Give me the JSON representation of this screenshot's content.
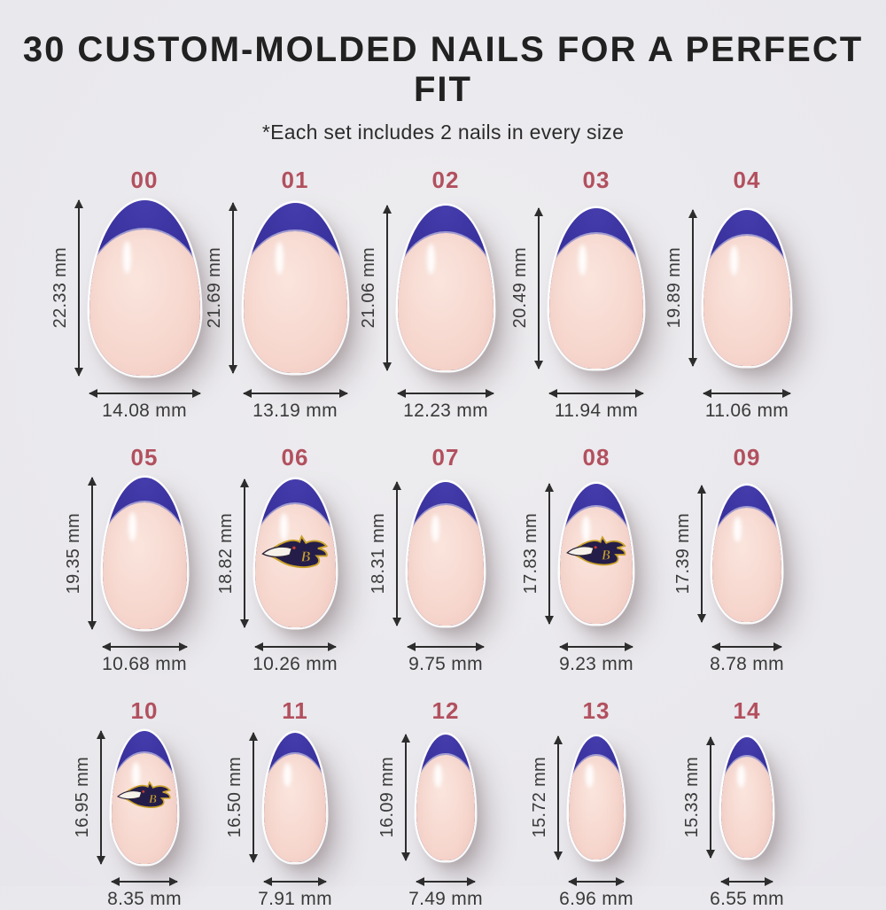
{
  "header": {
    "title": "30 CUSTOM-MOLDED NAILS FOR A PERFECT FIT",
    "subtitle": "*Each set includes 2 nails in every size"
  },
  "design": {
    "accent_label_color": "#b2505e",
    "tip_color": "#342c96",
    "base_color": "#f4d3ca",
    "background_color": "#e8e7ec",
    "decal_icon": "ravens-bird-logo"
  },
  "unit": "mm",
  "nails": [
    {
      "id": "00",
      "height_label": "22.33 mm",
      "width_label": "14.08 mm",
      "height_mm": 22.33,
      "width_mm": 14.08,
      "logo": false
    },
    {
      "id": "01",
      "height_label": "21.69 mm",
      "width_label": "13.19 mm",
      "height_mm": 21.69,
      "width_mm": 13.19,
      "logo": false
    },
    {
      "id": "02",
      "height_label": "21.06 mm",
      "width_label": "12.23 mm",
      "height_mm": 21.06,
      "width_mm": 12.23,
      "logo": false
    },
    {
      "id": "03",
      "height_label": "20.49 mm",
      "width_label": "11.94 mm",
      "height_mm": 20.49,
      "width_mm": 11.94,
      "logo": false
    },
    {
      "id": "04",
      "height_label": "19.89 mm",
      "width_label": "11.06 mm",
      "height_mm": 19.89,
      "width_mm": 11.06,
      "logo": false
    },
    {
      "id": "05",
      "height_label": "19.35 mm",
      "width_label": "10.68 mm",
      "height_mm": 19.35,
      "width_mm": 10.68,
      "logo": false
    },
    {
      "id": "06",
      "height_label": "18.82 mm",
      "width_label": "10.26 mm",
      "height_mm": 18.82,
      "width_mm": 10.26,
      "logo": true
    },
    {
      "id": "07",
      "height_label": "18.31 mm",
      "width_label": "9.75 mm",
      "height_mm": 18.31,
      "width_mm": 9.75,
      "logo": false
    },
    {
      "id": "08",
      "height_label": "17.83 mm",
      "width_label": "9.23 mm",
      "height_mm": 17.83,
      "width_mm": 9.23,
      "logo": true
    },
    {
      "id": "09",
      "height_label": "17.39 mm",
      "width_label": "8.78 mm",
      "height_mm": 17.39,
      "width_mm": 8.78,
      "logo": false
    },
    {
      "id": "10",
      "height_label": "16.95 mm",
      "width_label": "8.35 mm",
      "height_mm": 16.95,
      "width_mm": 8.35,
      "logo": true
    },
    {
      "id": "11",
      "height_label": "16.50 mm",
      "width_label": "7.91 mm",
      "height_mm": 16.5,
      "width_mm": 7.91,
      "logo": false
    },
    {
      "id": "12",
      "height_label": "16.09 mm",
      "width_label": "7.49 mm",
      "height_mm": 16.09,
      "width_mm": 7.49,
      "logo": false
    },
    {
      "id": "13",
      "height_label": "15.72 mm",
      "width_label": "6.96 mm",
      "height_mm": 15.72,
      "width_mm": 6.96,
      "logo": false
    },
    {
      "id": "14",
      "height_label": "15.33 mm",
      "width_label": "6.55 mm",
      "height_mm": 15.33,
      "width_mm": 6.55,
      "logo": false
    }
  ]
}
